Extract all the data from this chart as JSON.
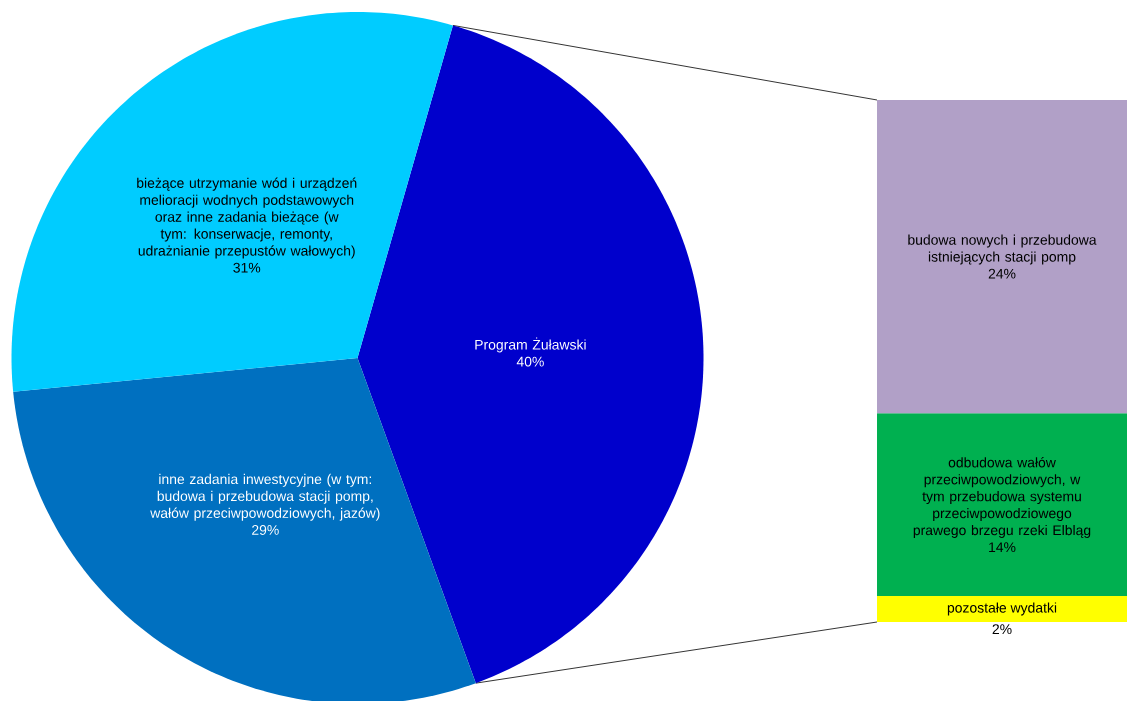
{
  "chart_data": [
    {
      "type": "pie",
      "categories": [
        "Program Żuławski",
        "inne zadania inwestycyjne (w tym: budowa i przebudowa stacji pomp, wałów przeciwpowodziowych, jazów)",
        "bieżące utrzymanie wód i urządzeń melioracji wodnych podstawowych oraz inne zadania bieżące (w tym: konserwacje, remonty, udrażnianie przepustów wałowych)"
      ],
      "values": [
        40,
        29,
        31
      ],
      "colors": [
        "#0000CC",
        "#0070C0",
        "#00CCFF"
      ],
      "value_labels": [
        "40%",
        "29%",
        "31%"
      ]
    },
    {
      "type": "bar",
      "stacked": true,
      "categories": [
        null
      ],
      "series": [
        {
          "name": "pozostałe wydatki",
          "color": "#FFFF00",
          "values": [
            2
          ],
          "value_labels": [
            "2%"
          ]
        },
        {
          "name": "odbudowa wałów przeciwpowodziowych, w tym przebudowa systemu przeciwpowodziowego prawego brzegu rzeki Elbląg",
          "color": "#00B050",
          "values": [
            14
          ],
          "value_labels": [
            "14%"
          ]
        },
        {
          "name": "budowa nowych i przebudowa istniejących stacji pomp",
          "color": "#B1A0C7",
          "values": [
            24
          ],
          "value_labels": [
            "24%"
          ]
        }
      ]
    }
  ]
}
